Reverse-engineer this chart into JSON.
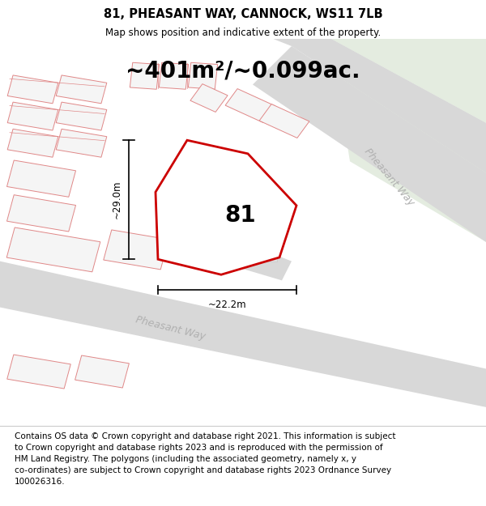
{
  "title": "81, PHEASANT WAY, CANNOCK, WS11 7LB",
  "subtitle": "Map shows position and indicative extent of the property.",
  "footer": "Contains OS data © Crown copyright and database right 2021. This information is subject\nto Crown copyright and database rights 2023 and is reproduced with the permission of\nHM Land Registry. The polygons (including the associated geometry, namely x, y\nco-ordinates) are subject to Crown copyright and database rights 2023 Ordnance Survey\n100026316.",
  "area_text": "~401m²/~0.099ac.",
  "label_81": "81",
  "dim_height": "~29.0m",
  "dim_width": "~22.2m",
  "plot_color": "#cc0000",
  "road_color": "#d8d8d8",
  "green_color": "#e4ece0",
  "building_outline": "#e08888",
  "building_fill": "#f5f5f5",
  "map_bg": "#ffffff",
  "title_bg": "#ffffff",
  "footer_bg": "#ffffff",
  "street_label_color": "#b0b0b0",
  "title_fontsize": 10.5,
  "subtitle_fontsize": 8.5,
  "area_fontsize": 20,
  "label_fontsize": 20,
  "dim_fontsize": 8.5,
  "footer_fontsize": 7.5
}
